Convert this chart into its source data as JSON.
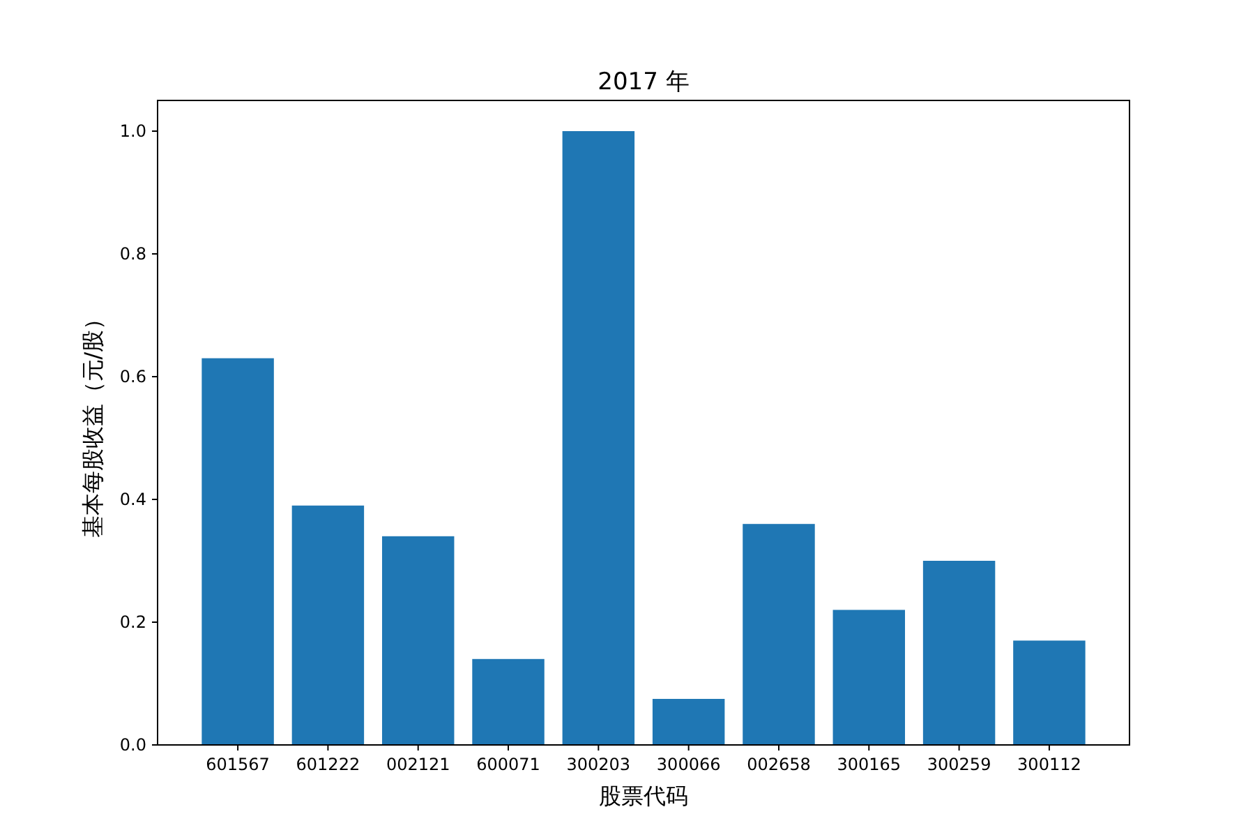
{
  "chart_data": {
    "type": "bar",
    "title": "2017 年",
    "xlabel": "股票代码",
    "ylabel": "基本每股收益（元/股）",
    "categories": [
      "601567",
      "601222",
      "002121",
      "600071",
      "300203",
      "300066",
      "002658",
      "300165",
      "300259",
      "300112"
    ],
    "values": [
      0.63,
      0.39,
      0.34,
      0.14,
      1.0,
      0.075,
      0.36,
      0.22,
      0.3,
      0.17
    ],
    "color": "#1f77b4",
    "ylim": [
      0,
      1.05
    ],
    "yticks": [
      {
        "value": 0,
        "label": "0.0"
      },
      {
        "value": 0.2,
        "label": "0.2"
      },
      {
        "value": 0.4,
        "label": "0.4"
      },
      {
        "value": 0.6,
        "label": "0.6"
      },
      {
        "value": 0.8,
        "label": "0.8"
      },
      {
        "value": 1.0,
        "label": "1.0"
      }
    ],
    "grid": false
  }
}
